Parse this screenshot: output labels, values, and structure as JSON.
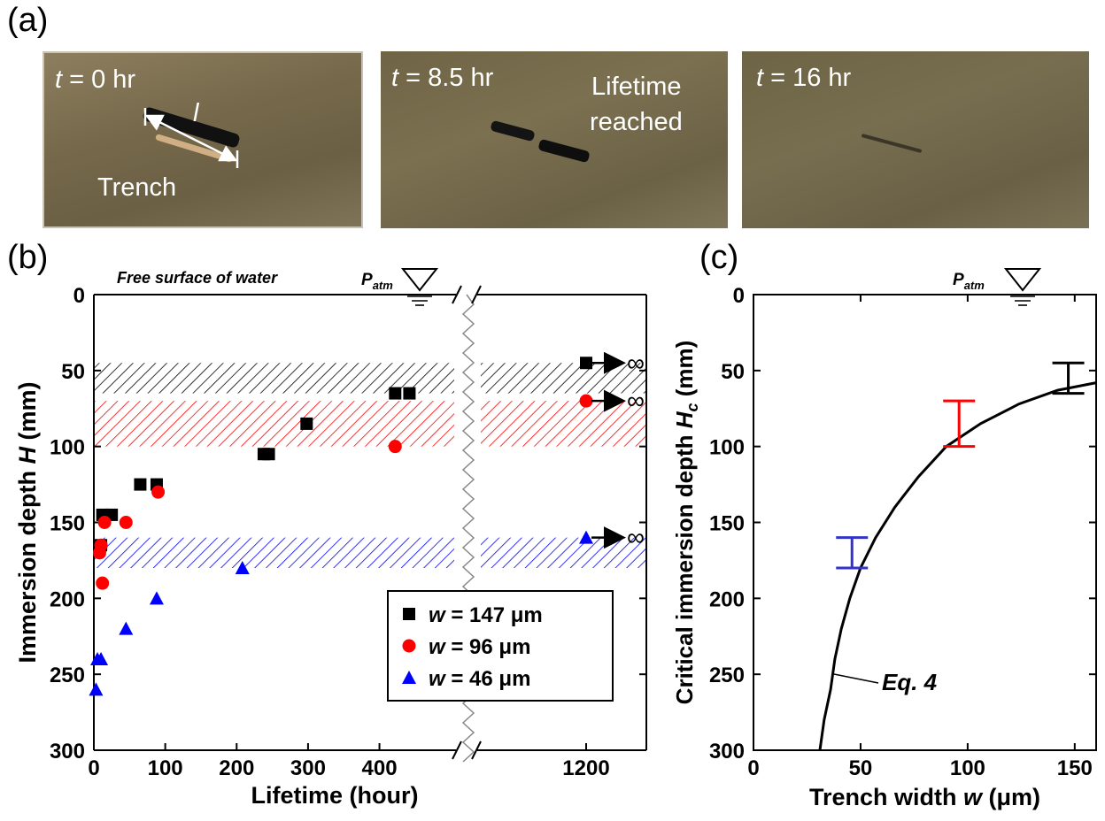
{
  "panel_a": {
    "label": "(a)",
    "photos": [
      {
        "time_var": "t",
        "time_rest": " = 0 hr",
        "note": "",
        "trench_label": "Trench",
        "length_label": "l"
      },
      {
        "time_var": "t",
        "time_rest": " = 8.5 hr",
        "note_line1": "Lifetime",
        "note_line2": "reached"
      },
      {
        "time_var": "t",
        "time_rest": " = 16 hr"
      }
    ]
  },
  "panel_b": {
    "label": "(b)"
  },
  "panel_c": {
    "label": "(c)"
  },
  "chart_data": [
    {
      "type": "scatter",
      "xlabel": "Lifetime (hour)",
      "ylabel_main": "Immersion depth ",
      "ylabel_var": "H",
      "ylabel_unit": " (mm)",
      "surface_note": "Free surface of water",
      "patm_main": "P",
      "patm_sub": "atm",
      "x_ticks": [
        "0",
        "100",
        "200",
        "300",
        "400",
        "1200"
      ],
      "y_ticks": [
        "0",
        "50",
        "100",
        "150",
        "200",
        "250",
        "300"
      ],
      "xlim_left": [
        0,
        470
      ],
      "xlim_right_tick": 1200,
      "ylim": [
        0,
        300
      ],
      "y_inverted": true,
      "axis_break": true,
      "infinity_symbol": "∞",
      "legend_position": "bottom-right",
      "series": [
        {
          "name_var": "w",
          "name_rest": " = 147 μm",
          "color": "#000000",
          "marker": "square",
          "points": [
            [
              10,
              165
            ],
            [
              12,
              145
            ],
            [
              25,
              145
            ],
            [
              65,
              125
            ],
            [
              88,
              125
            ],
            [
              238,
              105
            ],
            [
              245,
              105
            ],
            [
              298,
              85
            ],
            [
              422,
              65
            ],
            [
              442,
              65
            ]
          ],
          "bands": [
            [
              45,
              65
            ]
          ],
          "infinite_points": [
            [
              1200,
              45
            ]
          ]
        },
        {
          "name_var": "w",
          "name_rest": " = 96 μm",
          "color": "#ff0000",
          "marker": "circle",
          "points": [
            [
              8,
              170
            ],
            [
              10,
              165
            ],
            [
              12,
              190
            ],
            [
              15,
              150
            ],
            [
              45,
              150
            ],
            [
              90,
              130
            ],
            [
              422,
              100
            ]
          ],
          "bands": [
            [
              70,
              100
            ]
          ],
          "infinite_points": [
            [
              1200,
              70
            ]
          ]
        },
        {
          "name_var": "w",
          "name_rest": " = 46 μm",
          "color": "#0000ff",
          "marker": "triangle",
          "points": [
            [
              3,
              260
            ],
            [
              5,
              240
            ],
            [
              10,
              240
            ],
            [
              45,
              220
            ],
            [
              88,
              200
            ],
            [
              208,
              180
            ]
          ],
          "bands": [
            [
              160,
              180
            ]
          ],
          "infinite_points": [
            [
              1200,
              160
            ]
          ]
        }
      ]
    },
    {
      "type": "line",
      "xlabel_main": "Trench width ",
      "xlabel_var": "w",
      "xlabel_unit": " (μm)",
      "ylabel_main": "Critical immersion depth ",
      "ylabel_var": "H",
      "ylabel_sub": "c",
      "ylabel_unit": " (mm)",
      "patm_main": "P",
      "patm_sub": "atm",
      "x_ticks": [
        "0",
        "50",
        "100",
        "150"
      ],
      "y_ticks": [
        "0",
        "50",
        "100",
        "150",
        "200",
        "250",
        "300"
      ],
      "xlim": [
        0,
        160
      ],
      "ylim": [
        0,
        300
      ],
      "y_inverted": true,
      "curve_label": "Eq. 4",
      "curve": [
        [
          31,
          300
        ],
        [
          33,
          280
        ],
        [
          36,
          260
        ],
        [
          38,
          240
        ],
        [
          41,
          220
        ],
        [
          45,
          200
        ],
        [
          50,
          180
        ],
        [
          57,
          160
        ],
        [
          66,
          140
        ],
        [
          77,
          120
        ],
        [
          90,
          100
        ],
        [
          106,
          85
        ],
        [
          124,
          72
        ],
        [
          142,
          63
        ],
        [
          160,
          58
        ]
      ],
      "error_bars": [
        {
          "x": 46,
          "low": 160,
          "high": 180,
          "color": "#3333cc"
        },
        {
          "x": 96,
          "low": 70,
          "high": 100,
          "color": "#ff0000"
        },
        {
          "x": 147,
          "low": 45,
          "high": 65,
          "color": "#000000"
        }
      ]
    }
  ]
}
